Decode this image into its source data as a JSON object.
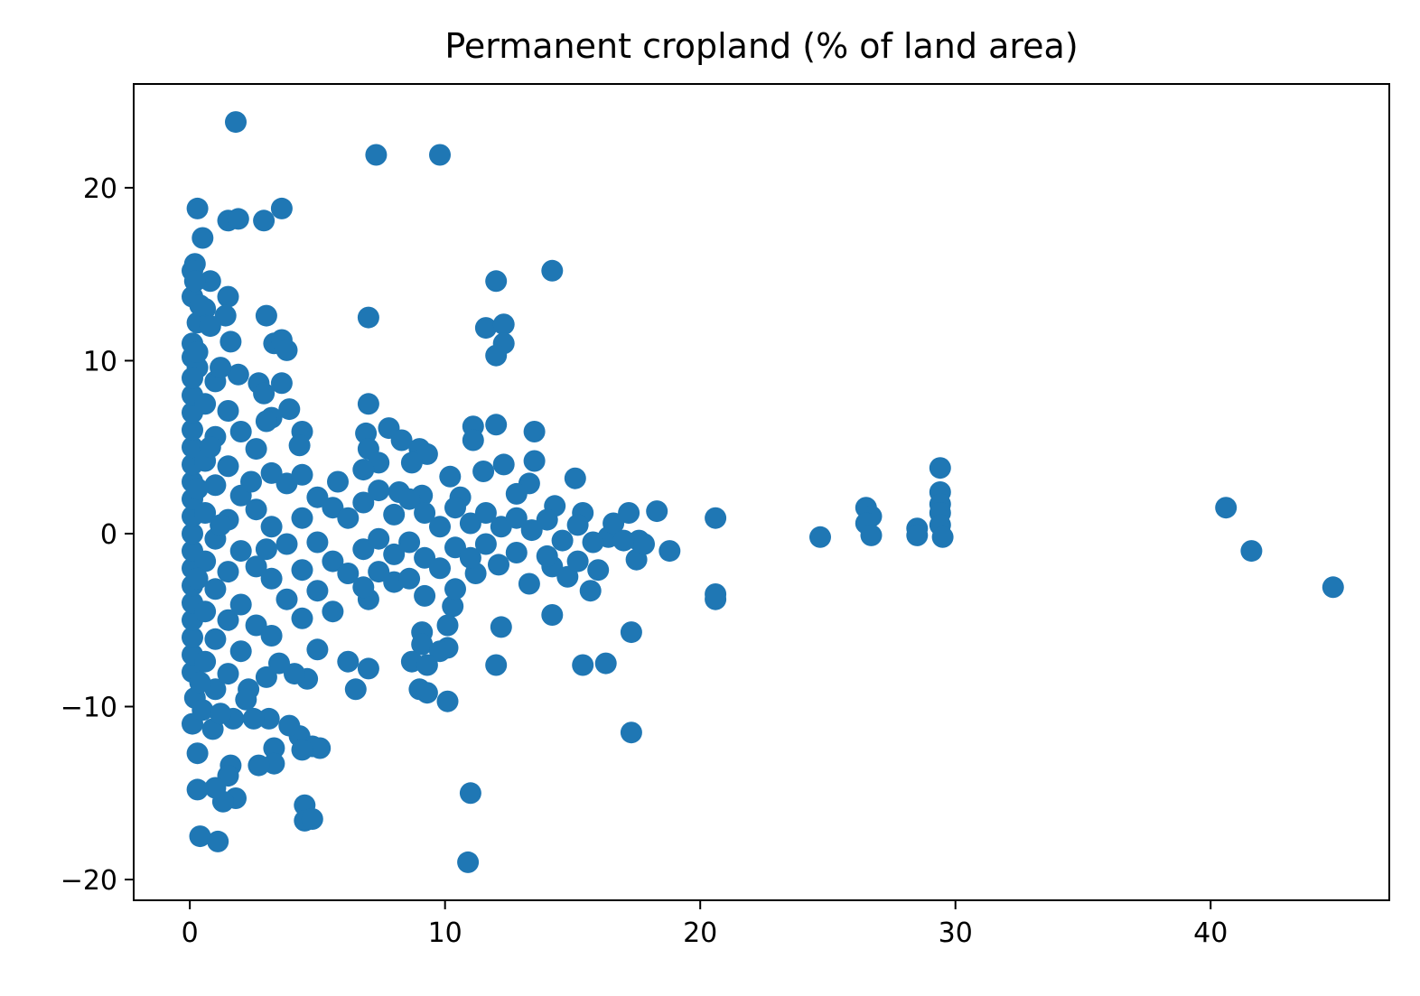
{
  "chart_data": {
    "type": "scatter",
    "title": "Permanent cropland (% of land area)",
    "xlabel": "",
    "ylabel": "",
    "xlim": [
      -2.2,
      47
    ],
    "ylim": [
      -21.2,
      26
    ],
    "x_ticks": [
      0,
      10,
      20,
      30,
      40
    ],
    "y_ticks": [
      -20,
      -10,
      0,
      10,
      20
    ],
    "x_tick_labels": [
      "0",
      "10",
      "20",
      "30",
      "40"
    ],
    "y_tick_labels": [
      "−20",
      "−10",
      "0",
      "10",
      "20"
    ],
    "marker_color": "#1f77b4",
    "grid": false,
    "points": [
      [
        1.8,
        23.8
      ],
      [
        7.3,
        21.9
      ],
      [
        9.8,
        21.9
      ],
      [
        0.3,
        18.8
      ],
      [
        3.6,
        18.8
      ],
      [
        1.5,
        18.1
      ],
      [
        1.9,
        18.2
      ],
      [
        2.9,
        18.1
      ],
      [
        0.5,
        17.1
      ],
      [
        0.2,
        15.6
      ],
      [
        0.1,
        15.2
      ],
      [
        14.2,
        15.2
      ],
      [
        12.0,
        14.6
      ],
      [
        0.8,
        14.6
      ],
      [
        0.1,
        13.7
      ],
      [
        1.5,
        13.7
      ],
      [
        0.6,
        13.0
      ],
      [
        1.4,
        12.6
      ],
      [
        3.0,
        12.6
      ],
      [
        7.0,
        12.5
      ],
      [
        0.3,
        12.2
      ],
      [
        11.6,
        11.9
      ],
      [
        12.3,
        12.1
      ],
      [
        12.3,
        11.0
      ],
      [
        1.6,
        11.1
      ],
      [
        3.3,
        11.0
      ],
      [
        3.6,
        11.2
      ],
      [
        3.8,
        10.6
      ],
      [
        12.0,
        10.3
      ],
      [
        0.1,
        10.2
      ],
      [
        0.3,
        9.6
      ],
      [
        1.9,
        9.2
      ],
      [
        3.6,
        8.7
      ],
      [
        2.7,
        8.7
      ],
      [
        2.9,
        8.1
      ],
      [
        7.0,
        7.5
      ],
      [
        3.9,
        7.2
      ],
      [
        3.2,
        6.7
      ],
      [
        3.0,
        6.5
      ],
      [
        7.8,
        6.1
      ],
      [
        6.9,
        5.8
      ],
      [
        8.3,
        5.4
      ],
      [
        4.4,
        5.9
      ],
      [
        4.3,
        5.1
      ],
      [
        11.1,
        6.2
      ],
      [
        12.0,
        6.3
      ],
      [
        13.5,
        5.9
      ],
      [
        11.1,
        5.4
      ],
      [
        9.0,
        4.9
      ],
      [
        9.3,
        4.6
      ],
      [
        7.0,
        4.9
      ],
      [
        7.4,
        4.1
      ],
      [
        8.7,
        4.1
      ],
      [
        12.3,
        4.0
      ],
      [
        13.5,
        4.2
      ],
      [
        6.8,
        3.7
      ],
      [
        10.2,
        3.3
      ],
      [
        11.5,
        3.6
      ],
      [
        5.8,
        3.0
      ],
      [
        15.1,
        3.2
      ],
      [
        13.3,
        2.9
      ],
      [
        12.8,
        2.3
      ],
      [
        8.2,
        2.4
      ],
      [
        9.1,
        2.2
      ],
      [
        10.6,
        2.1
      ],
      [
        14.3,
        1.6
      ],
      [
        15.4,
        1.2
      ],
      [
        18.3,
        1.3
      ],
      [
        17.2,
        1.2
      ],
      [
        20.6,
        0.9
      ],
      [
        26.5,
        1.5
      ],
      [
        26.7,
        1.0
      ],
      [
        26.5,
        0.6
      ],
      [
        28.5,
        0.3
      ],
      [
        28.5,
        -0.1
      ],
      [
        29.4,
        3.8
      ],
      [
        29.4,
        2.4
      ],
      [
        29.4,
        1.7
      ],
      [
        29.4,
        1.2
      ],
      [
        29.4,
        0.5
      ],
      [
        29.5,
        -0.2
      ],
      [
        26.7,
        -0.1
      ],
      [
        24.7,
        -0.2
      ],
      [
        40.6,
        1.5
      ],
      [
        41.6,
        -1.0
      ],
      [
        44.8,
        -3.1
      ],
      [
        18.8,
        -1.0
      ],
      [
        17.6,
        -0.4
      ],
      [
        17.5,
        -1.5
      ],
      [
        16.4,
        -0.2
      ],
      [
        16.0,
        -2.1
      ],
      [
        15.7,
        -3.3
      ],
      [
        14.8,
        -2.5
      ],
      [
        14.2,
        -1.9
      ],
      [
        13.3,
        -2.9
      ],
      [
        12.1,
        -1.8
      ],
      [
        11.2,
        -2.3
      ],
      [
        14.2,
        -4.7
      ],
      [
        12.2,
        -5.4
      ],
      [
        10.3,
        -4.2
      ],
      [
        10.1,
        -5.3
      ],
      [
        9.1,
        -5.7
      ],
      [
        9.1,
        -6.4
      ],
      [
        10.1,
        -6.6
      ],
      [
        9.8,
        -6.8
      ],
      [
        12.0,
        -7.6
      ],
      [
        15.4,
        -7.6
      ],
      [
        16.3,
        -7.5
      ],
      [
        17.3,
        -5.7
      ],
      [
        17.3,
        -11.5
      ],
      [
        20.6,
        -3.5
      ],
      [
        20.6,
        -3.8
      ],
      [
        8.7,
        -7.4
      ],
      [
        9.3,
        -7.6
      ],
      [
        9.0,
        -9.0
      ],
      [
        9.3,
        -9.2
      ],
      [
        10.1,
        -9.7
      ],
      [
        7.0,
        -7.8
      ],
      [
        6.2,
        -7.4
      ],
      [
        6.5,
        -9.0
      ],
      [
        7.0,
        -3.8
      ],
      [
        8.0,
        -2.8
      ],
      [
        5.0,
        -6.7
      ],
      [
        4.6,
        -8.4
      ],
      [
        4.3,
        -11.7
      ],
      [
        4.8,
        -12.3
      ],
      [
        5.1,
        -12.4
      ],
      [
        4.4,
        -12.5
      ],
      [
        3.3,
        -12.4
      ],
      [
        3.3,
        -13.3
      ],
      [
        2.7,
        -13.4
      ],
      [
        3.1,
        -10.7
      ],
      [
        3.9,
        -11.1
      ],
      [
        2.5,
        -10.7
      ],
      [
        1.7,
        -10.7
      ],
      [
        1.6,
        -13.4
      ],
      [
        1.5,
        -14.0
      ],
      [
        1.8,
        -15.3
      ],
      [
        1.3,
        -15.5
      ],
      [
        1.0,
        -14.7
      ],
      [
        0.3,
        -14.8
      ],
      [
        0.4,
        -17.5
      ],
      [
        1.1,
        -17.8
      ],
      [
        4.5,
        -15.7
      ],
      [
        4.5,
        -16.6
      ],
      [
        4.8,
        -16.5
      ],
      [
        11.0,
        -15.0
      ],
      [
        10.9,
        -19.0
      ],
      [
        0.3,
        -12.7
      ],
      [
        0.9,
        -11.3
      ],
      [
        0.1,
        -11.0
      ],
      [
        0.2,
        -9.5
      ],
      [
        0.1,
        -8.0
      ],
      [
        1.0,
        -9.0
      ],
      [
        2.3,
        -9.0
      ],
      [
        3.0,
        -8.3
      ],
      [
        3.5,
        -7.5
      ],
      [
        4.1,
        -8.1
      ],
      [
        0.1,
        -7.0
      ],
      [
        0.1,
        -6.0
      ],
      [
        0.1,
        -5.0
      ],
      [
        0.1,
        -4.0
      ],
      [
        0.1,
        -3.0
      ],
      [
        0.1,
        -2.0
      ],
      [
        0.1,
        -1.0
      ],
      [
        0.1,
        0.0
      ],
      [
        0.1,
        1.0
      ],
      [
        0.1,
        2.0
      ],
      [
        0.1,
        3.0
      ],
      [
        0.1,
        4.0
      ],
      [
        0.1,
        5.0
      ],
      [
        0.1,
        6.0
      ],
      [
        0.1,
        7.0
      ],
      [
        0.1,
        8.0
      ],
      [
        0.1,
        9.0
      ],
      [
        0.1,
        11.0
      ],
      [
        0.2,
        14.6
      ],
      [
        0.6,
        7.5
      ],
      [
        0.6,
        4.2
      ],
      [
        0.6,
        1.2
      ],
      [
        0.6,
        -1.6
      ],
      [
        0.6,
        -4.5
      ],
      [
        0.6,
        -7.4
      ],
      [
        1.0,
        8.8
      ],
      [
        1.0,
        5.6
      ],
      [
        1.0,
        2.8
      ],
      [
        1.0,
        -0.3
      ],
      [
        1.0,
        -3.2
      ],
      [
        1.0,
        -6.1
      ],
      [
        1.5,
        7.1
      ],
      [
        1.5,
        3.9
      ],
      [
        1.5,
        0.8
      ],
      [
        1.5,
        -2.2
      ],
      [
        1.5,
        -5.0
      ],
      [
        1.5,
        -8.1
      ],
      [
        2.0,
        5.9
      ],
      [
        2.0,
        2.2
      ],
      [
        2.0,
        -1.0
      ],
      [
        2.0,
        -4.1
      ],
      [
        2.0,
        -6.8
      ],
      [
        2.6,
        4.9
      ],
      [
        2.6,
        1.4
      ],
      [
        2.6,
        -1.9
      ],
      [
        2.6,
        -5.3
      ],
      [
        3.2,
        3.5
      ],
      [
        3.2,
        0.4
      ],
      [
        3.2,
        -2.6
      ],
      [
        3.2,
        -5.9
      ],
      [
        3.8,
        2.9
      ],
      [
        3.8,
        -0.6
      ],
      [
        3.8,
        -3.8
      ],
      [
        4.4,
        3.4
      ],
      [
        4.4,
        0.9
      ],
      [
        4.4,
        -2.1
      ],
      [
        4.4,
        -4.9
      ],
      [
        5.0,
        2.1
      ],
      [
        5.0,
        -0.5
      ],
      [
        5.0,
        -3.3
      ],
      [
        5.6,
        1.5
      ],
      [
        5.6,
        -1.6
      ],
      [
        5.6,
        -4.5
      ],
      [
        6.2,
        0.9
      ],
      [
        6.2,
        -2.3
      ],
      [
        6.8,
        1.8
      ],
      [
        6.8,
        -0.9
      ],
      [
        6.8,
        -3.1
      ],
      [
        7.4,
        2.5
      ],
      [
        7.4,
        -0.3
      ],
      [
        7.4,
        -2.2
      ],
      [
        8.0,
        1.1
      ],
      [
        8.0,
        -1.2
      ],
      [
        8.6,
        2.0
      ],
      [
        8.6,
        -0.5
      ],
      [
        8.6,
        -2.6
      ],
      [
        9.2,
        1.2
      ],
      [
        9.2,
        -1.4
      ],
      [
        9.2,
        -3.6
      ],
      [
        9.8,
        0.4
      ],
      [
        9.8,
        -2.0
      ],
      [
        10.4,
        1.5
      ],
      [
        10.4,
        -0.8
      ],
      [
        10.4,
        -3.2
      ],
      [
        11.0,
        0.6
      ],
      [
        11.0,
        -1.4
      ],
      [
        11.6,
        1.2
      ],
      [
        11.6,
        -0.6
      ],
      [
        12.2,
        0.4
      ],
      [
        12.8,
        0.9
      ],
      [
        12.8,
        -1.1
      ],
      [
        13.4,
        0.2
      ],
      [
        14.0,
        0.8
      ],
      [
        14.0,
        -1.3
      ],
      [
        14.6,
        -0.4
      ],
      [
        15.2,
        0.5
      ],
      [
        15.2,
        -1.6
      ],
      [
        15.8,
        -0.5
      ],
      [
        16.6,
        0.6
      ],
      [
        17.0,
        -0.4
      ],
      [
        17.8,
        -0.6
      ],
      [
        0.3,
        10.5
      ],
      [
        0.4,
        13.2
      ],
      [
        0.8,
        12.0
      ],
      [
        1.2,
        9.6
      ],
      [
        0.5,
        -10.2
      ],
      [
        1.2,
        -10.4
      ],
      [
        0.4,
        -8.6
      ],
      [
        2.2,
        -9.6
      ],
      [
        0.8,
        5.0
      ],
      [
        1.2,
        0.5
      ],
      [
        2.4,
        3.0
      ],
      [
        3.0,
        -0.9
      ],
      [
        0.3,
        2.6
      ],
      [
        0.3,
        -2.6
      ]
    ]
  }
}
